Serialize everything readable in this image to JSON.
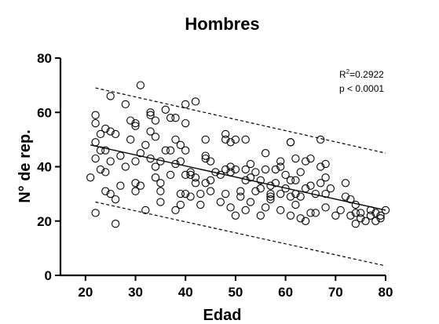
{
  "chart_data": {
    "type": "scatter",
    "title": "Hombres",
    "xlabel": "Edad",
    "ylabel": "N° de rep.",
    "xlim": [
      15,
      80
    ],
    "ylim": [
      0,
      80
    ],
    "xticks": [
      20,
      30,
      40,
      50,
      60,
      70,
      80
    ],
    "yticks": [
      0,
      20,
      40,
      60,
      80
    ],
    "grid": false,
    "annotation": {
      "r2_prefix": "R",
      "r2_sup": "2",
      "r2_value": "=0.2922",
      "p_text": "p < 0.0001"
    },
    "fit_line": {
      "x": [
        21,
        80
      ],
      "y": [
        48,
        24
      ]
    },
    "band_upper": {
      "x": [
        22,
        80
      ],
      "y": [
        69,
        45
      ]
    },
    "band_lower": {
      "x": [
        22,
        80
      ],
      "y": [
        27,
        3.5
      ]
    },
    "points": [
      [
        21,
        36
      ],
      [
        22,
        59
      ],
      [
        22,
        56
      ],
      [
        22,
        49
      ],
      [
        22,
        43
      ],
      [
        22,
        23
      ],
      [
        23,
        46
      ],
      [
        23,
        39
      ],
      [
        23,
        52
      ],
      [
        24,
        54
      ],
      [
        24,
        46
      ],
      [
        24,
        38
      ],
      [
        24,
        31
      ],
      [
        25,
        66
      ],
      [
        25,
        53
      ],
      [
        25,
        42
      ],
      [
        25,
        30
      ],
      [
        26,
        52
      ],
      [
        26,
        28
      ],
      [
        26,
        19
      ],
      [
        27,
        44
      ],
      [
        27,
        33
      ],
      [
        28,
        63
      ],
      [
        28,
        40
      ],
      [
        29,
        57
      ],
      [
        29,
        50
      ],
      [
        30,
        56
      ],
      [
        30,
        55
      ],
      [
        30,
        42
      ],
      [
        30,
        34
      ],
      [
        30,
        31
      ],
      [
        31,
        70
      ],
      [
        31,
        45
      ],
      [
        31,
        33
      ],
      [
        32,
        48
      ],
      [
        32,
        24
      ],
      [
        33,
        60
      ],
      [
        33,
        59
      ],
      [
        33,
        53
      ],
      [
        33,
        43
      ],
      [
        34,
        57
      ],
      [
        34,
        51
      ],
      [
        34,
        40
      ],
      [
        34,
        36
      ],
      [
        35,
        42
      ],
      [
        35,
        34
      ],
      [
        35,
        31
      ],
      [
        35,
        27
      ],
      [
        36,
        61
      ],
      [
        36,
        46
      ],
      [
        37,
        58
      ],
      [
        37,
        46
      ],
      [
        37,
        37
      ],
      [
        38,
        58
      ],
      [
        38,
        50
      ],
      [
        38,
        41
      ],
      [
        38,
        24
      ],
      [
        39,
        48
      ],
      [
        39,
        42
      ],
      [
        39,
        30
      ],
      [
        39,
        26
      ],
      [
        40,
        63
      ],
      [
        40,
        56
      ],
      [
        40,
        46
      ],
      [
        40,
        37
      ],
      [
        40,
        30
      ],
      [
        41,
        38
      ],
      [
        41,
        37
      ],
      [
        41,
        29
      ],
      [
        42,
        64
      ],
      [
        42,
        36
      ],
      [
        42,
        34
      ],
      [
        43,
        30
      ],
      [
        43,
        26
      ],
      [
        44,
        50
      ],
      [
        44,
        44
      ],
      [
        44,
        43
      ],
      [
        44,
        34
      ],
      [
        45,
        42
      ],
      [
        45,
        35
      ],
      [
        45,
        31
      ],
      [
        46,
        38
      ],
      [
        47,
        37
      ],
      [
        47,
        27
      ],
      [
        48,
        52
      ],
      [
        48,
        50
      ],
      [
        48,
        39
      ],
      [
        48,
        30
      ],
      [
        49,
        49
      ],
      [
        49,
        40
      ],
      [
        49,
        38
      ],
      [
        49,
        25
      ],
      [
        50,
        50
      ],
      [
        50,
        39
      ],
      [
        50,
        22
      ],
      [
        51,
        31
      ],
      [
        51,
        29
      ],
      [
        52,
        50
      ],
      [
        52,
        39
      ],
      [
        52,
        35
      ],
      [
        52,
        24
      ],
      [
        53,
        41
      ],
      [
        53,
        36
      ],
      [
        53,
        27
      ],
      [
        54,
        38
      ],
      [
        54,
        31
      ],
      [
        55,
        35
      ],
      [
        55,
        32
      ],
      [
        55,
        22
      ],
      [
        56,
        45
      ],
      [
        56,
        39
      ],
      [
        56,
        25
      ],
      [
        57,
        33
      ],
      [
        57,
        30
      ],
      [
        57,
        29
      ],
      [
        57,
        28
      ],
      [
        58,
        39
      ],
      [
        58,
        34
      ],
      [
        59,
        42
      ],
      [
        59,
        40
      ],
      [
        59,
        30
      ],
      [
        59,
        24
      ],
      [
        60,
        37
      ],
      [
        60,
        32
      ],
      [
        61,
        49
      ],
      [
        61,
        49
      ],
      [
        61,
        35
      ],
      [
        61,
        29
      ],
      [
        61,
        22
      ],
      [
        62,
        43
      ],
      [
        62,
        35
      ],
      [
        62,
        30
      ],
      [
        62,
        26
      ],
      [
        63,
        38
      ],
      [
        63,
        29
      ],
      [
        63,
        21
      ],
      [
        64,
        42
      ],
      [
        64,
        32
      ],
      [
        64,
        20
      ],
      [
        65,
        43
      ],
      [
        65,
        33
      ],
      [
        65,
        23
      ],
      [
        66,
        30
      ],
      [
        66,
        23
      ],
      [
        67,
        50
      ],
      [
        67,
        40
      ],
      [
        67,
        34
      ],
      [
        68,
        41
      ],
      [
        68,
        36
      ],
      [
        68,
        30
      ],
      [
        68,
        25
      ],
      [
        69,
        32
      ],
      [
        70,
        22
      ],
      [
        71,
        24
      ],
      [
        72,
        34
      ],
      [
        72,
        29
      ],
      [
        73,
        28
      ],
      [
        73,
        22
      ],
      [
        74,
        26
      ],
      [
        74,
        23
      ],
      [
        74,
        19
      ],
      [
        75,
        23
      ],
      [
        75,
        21
      ],
      [
        76,
        20
      ],
      [
        77,
        24
      ],
      [
        77,
        22
      ],
      [
        78,
        23
      ],
      [
        78,
        20
      ],
      [
        79,
        21
      ],
      [
        79,
        22
      ],
      [
        80,
        24
      ]
    ]
  }
}
